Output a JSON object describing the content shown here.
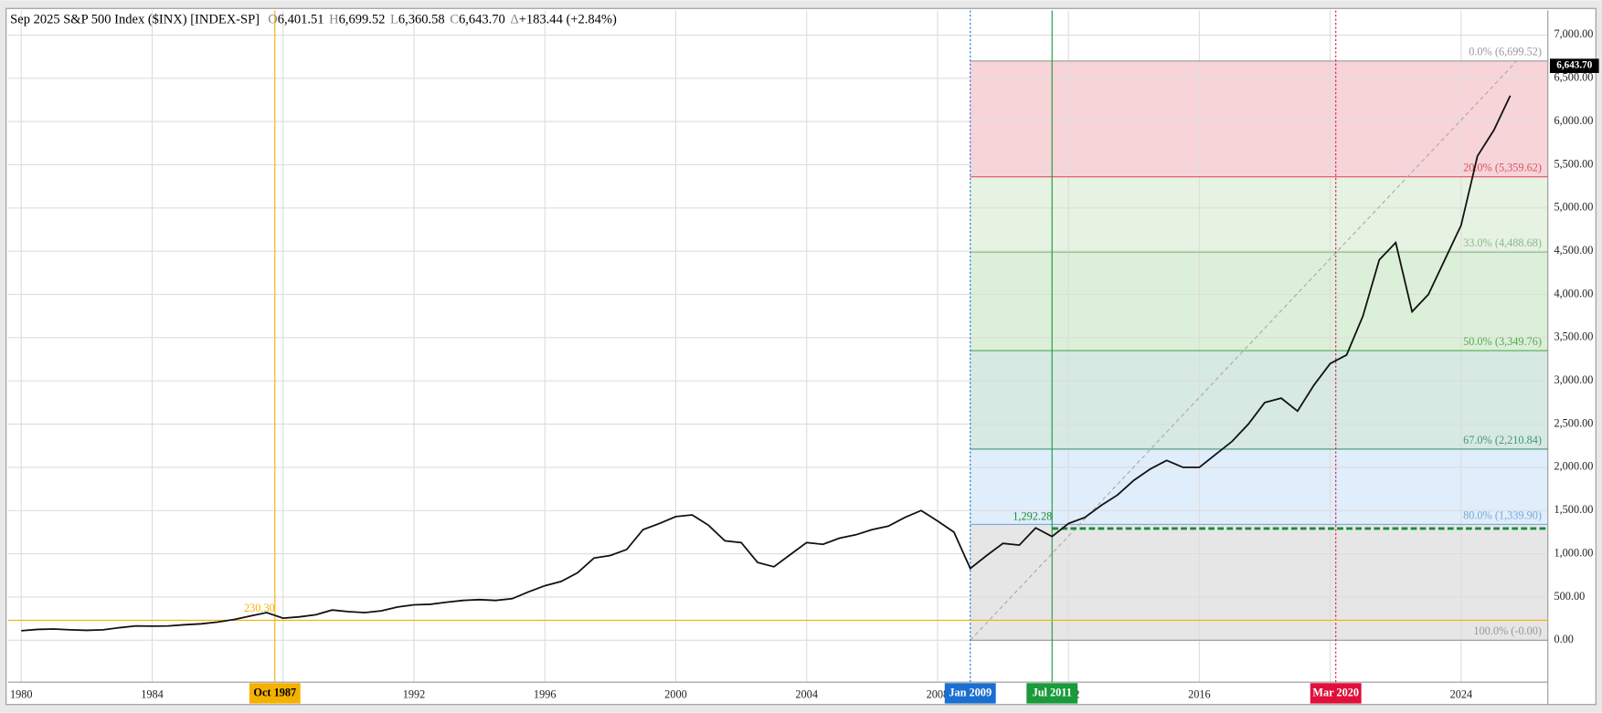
{
  "chart_data": {
    "type": "line",
    "title": "Sep 2025 S&P 500 Index ($INX) [INDEX-SP]",
    "ohlc": [
      {
        "key": "O",
        "text": "6,401.51"
      },
      {
        "key": "H",
        "text": "6,699.52"
      },
      {
        "key": "L",
        "text": "6,360.58"
      },
      {
        "key": "C",
        "text": "6,643.70"
      },
      {
        "key": "Δ",
        "text": "+183.44 (+2.84%)"
      }
    ],
    "color": "#111111",
    "x": [
      1980,
      1980.5,
      1981,
      1981.5,
      1982,
      1982.5,
      1983,
      1983.5,
      1984,
      1984.5,
      1985,
      1985.5,
      1986,
      1986.5,
      1987,
      1987.5,
      1988,
      1988.5,
      1989,
      1989.5,
      1990,
      1990.5,
      1991,
      1991.5,
      1992,
      1992.5,
      1993,
      1993.5,
      1994,
      1994.5,
      1995,
      1995.5,
      1996,
      1996.5,
      1997,
      1997.5,
      1998,
      1998.5,
      1999,
      1999.5,
      2000,
      2000.5,
      2001,
      2001.5,
      2002,
      2002.5,
      2003,
      2003.5,
      2004,
      2004.5,
      2005,
      2005.5,
      2006,
      2006.5,
      2007,
      2007.5,
      2008,
      2008.5,
      2009,
      2009.5,
      2010,
      2010.5,
      2011,
      2011.5,
      2012,
      2012.5,
      2013,
      2013.5,
      2014,
      2014.5,
      2015,
      2015.5,
      2016,
      2016.5,
      2017,
      2017.5,
      2018,
      2018.5,
      2019,
      2019.5,
      2020,
      2020.5,
      2021,
      2021.5,
      2022,
      2022.5,
      2023,
      2023.5,
      2024,
      2024.5,
      2025,
      2025.5
    ],
    "values": [
      110,
      125,
      130,
      120,
      115,
      120,
      145,
      165,
      163,
      165,
      180,
      190,
      210,
      240,
      280,
      320,
      255,
      270,
      295,
      350,
      330,
      320,
      340,
      385,
      410,
      415,
      440,
      460,
      470,
      460,
      480,
      560,
      630,
      680,
      780,
      950,
      980,
      1050,
      1280,
      1350,
      1430,
      1450,
      1330,
      1150,
      1130,
      900,
      850,
      990,
      1130,
      1110,
      1180,
      1220,
      1280,
      1320,
      1420,
      1500,
      1380,
      1250,
      830,
      980,
      1120,
      1100,
      1300,
      1200,
      1350,
      1420,
      1560,
      1680,
      1850,
      1980,
      2080,
      2000,
      2000,
      2150,
      2300,
      2500,
      2750,
      2800,
      2650,
      2950,
      3200,
      3300,
      3750,
      4400,
      4600,
      3800,
      4000,
      4400,
      4800,
      5600,
      5900,
      6300
    ],
    "xlim": [
      1979.6,
      2026.65
    ],
    "ylim": [
      -484,
      7284
    ],
    "xticks": [
      1980,
      1984,
      1988,
      1992,
      1996,
      2000,
      2004,
      2008,
      2012,
      2016,
      2020,
      2024
    ],
    "yticks": [
      {
        "value": 0,
        "label": "0.00"
      },
      {
        "value": 500,
        "label": "500.00"
      },
      {
        "value": 1000,
        "label": "1,000.00"
      },
      {
        "value": 1500,
        "label": "1,500.00"
      },
      {
        "value": 2000,
        "label": "2,000.00"
      },
      {
        "value": 2500,
        "label": "2,500.00"
      },
      {
        "value": 3000,
        "label": "3,000.00"
      },
      {
        "value": 3500,
        "label": "3,500.00"
      },
      {
        "value": 4000,
        "label": "4,000.00"
      },
      {
        "value": 4500,
        "label": "4,500.00"
      },
      {
        "value": 5000,
        "label": "5,000.00"
      },
      {
        "value": 5500,
        "label": "5,500.00"
      },
      {
        "value": 6000,
        "label": "6,000.00"
      },
      {
        "value": 6500,
        "label": "6,500.00"
      },
      {
        "value": 7000,
        "label": "7,000.00"
      }
    ],
    "grid": true,
    "last_price": {
      "value": 6643.7,
      "label": "6,643.70"
    },
    "fib_start": 2009,
    "fib_levels": [
      {
        "value": 6699.52,
        "label": "0.0% (6,699.52)",
        "color": "#999999"
      },
      {
        "value": 5359.62,
        "label": "20.0% (5,359.62)",
        "color": "#e05060"
      },
      {
        "value": 4488.68,
        "label": "33.0% (4,488.68)",
        "color": "#88bb88"
      },
      {
        "value": 3349.76,
        "label": "50.0% (3,349.76)",
        "color": "#55aa55"
      },
      {
        "value": 2210.84,
        "label": "67.0% (2,210.84)",
        "color": "#449977"
      },
      {
        "value": 1339.9,
        "label": "80.0% (1,339.90)",
        "color": "#77aadd"
      },
      {
        "value": 0,
        "label": "100.0% (-0.00)",
        "color": "#999999"
      }
    ],
    "fib_zone_colors": [
      "#f7d4d8",
      "#e6f2e2",
      "#dcefd8",
      "#d6e9e2",
      "#e0edfa",
      "#e6e6e6"
    ],
    "levels": [
      {
        "value": 230.3,
        "label": "230.30",
        "start": 1987.75,
        "color": "#f5b100",
        "dashed": false
      },
      {
        "value": 1292.28,
        "label": "1,292.28",
        "start": 2011.5,
        "color": "#1a8c3a",
        "dashed": true
      }
    ],
    "markers": [
      {
        "x": 1987.75,
        "label": "Oct 1987",
        "color": "#f5b100",
        "line": "solid"
      },
      {
        "x": 2009,
        "label": "Jan 2009",
        "color": "#1a6fd0",
        "line": "dotted"
      },
      {
        "x": 2011.5,
        "label": "Jul 2011",
        "color": "#1a9a3a",
        "line": "solid"
      },
      {
        "x": 2020.17,
        "label": "Mar 2020",
        "color": "#e0103a",
        "line": "dotted"
      }
    ]
  }
}
